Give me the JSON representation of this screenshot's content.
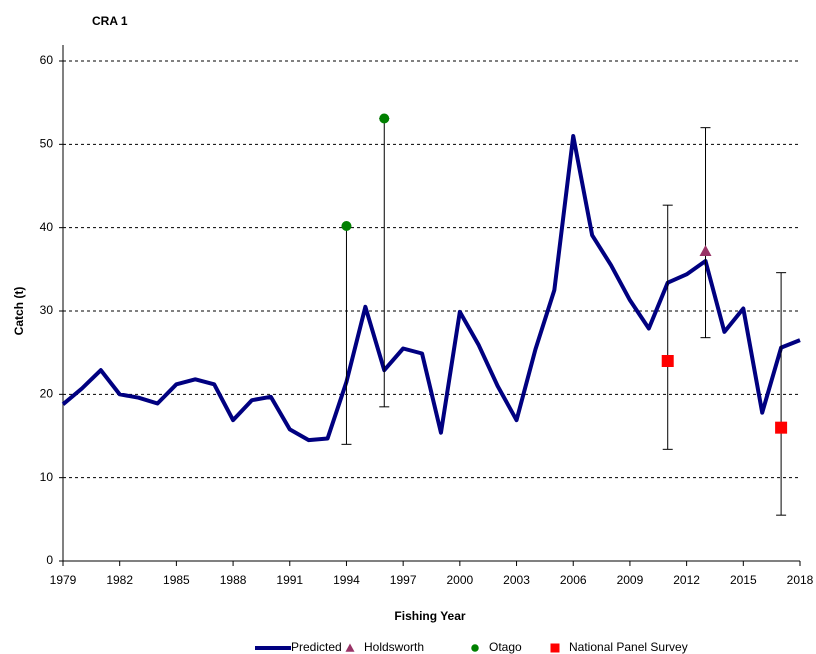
{
  "chart_data": {
    "type": "line",
    "title": "CRA 1",
    "xlabel": "Fishing Year",
    "ylabel": "Catch (t)",
    "x": [
      1979,
      1980,
      1981,
      1982,
      1983,
      1984,
      1985,
      1986,
      1987,
      1988,
      1989,
      1990,
      1991,
      1992,
      1993,
      1994,
      1995,
      1996,
      1997,
      1998,
      1999,
      2000,
      2001,
      2002,
      2003,
      2004,
      2005,
      2006,
      2007,
      2008,
      2009,
      2010,
      2011,
      2012,
      2013,
      2014,
      2015,
      2016,
      2017,
      2018
    ],
    "series": [
      {
        "name": "Predicted",
        "color": "#000080",
        "marker": "line",
        "values": [
          18.8,
          20.7,
          22.9,
          20.0,
          19.6,
          18.9,
          21.2,
          21.8,
          21.2,
          16.9,
          19.3,
          19.7,
          15.8,
          14.5,
          14.7,
          21.5,
          30.5,
          22.9,
          25.5,
          24.9,
          15.4,
          29.9,
          25.9,
          21.0,
          16.9,
          25.4,
          32.5,
          51.0,
          39.1,
          35.5,
          31.3,
          27.9,
          33.4,
          34.4,
          36.0,
          27.5,
          30.3,
          17.8,
          25.6,
          26.5
        ]
      },
      {
        "name": "Holdsworth",
        "color": "#993366",
        "marker": "triangle",
        "x": [
          2013
        ],
        "values": [
          37.2
        ],
        "lower": [
          26.8
        ],
        "upper": [
          52.0
        ]
      },
      {
        "name": "Otago",
        "color": "#008000",
        "marker": "circle",
        "x": [
          1994,
          1996
        ],
        "values": [
          40.2,
          53.1
        ],
        "lower": [
          14.0,
          18.5
        ],
        "upper": [
          40.2,
          53.1
        ]
      },
      {
        "name": "National Panel Survey",
        "color": "#ff0000",
        "marker": "square",
        "x": [
          2011,
          2017
        ],
        "values": [
          24.0,
          16.0
        ],
        "lower": [
          13.4,
          5.5
        ],
        "upper": [
          42.7,
          34.6
        ]
      }
    ],
    "xlim": [
      1979,
      2018
    ],
    "xticks": [
      1979,
      1982,
      1985,
      1988,
      1991,
      1994,
      1997,
      2000,
      2003,
      2006,
      2009,
      2012,
      2015,
      2018
    ],
    "ylim": [
      0,
      60
    ],
    "yticks": [
      0,
      10,
      20,
      30,
      40,
      50,
      60
    ],
    "grid": true,
    "legend": "bottom"
  }
}
